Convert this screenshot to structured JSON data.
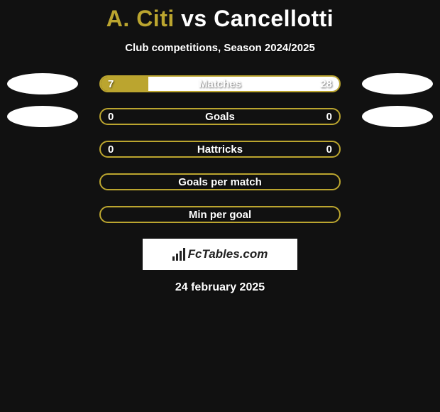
{
  "title": {
    "player1": "A. Citi",
    "vs": "vs",
    "player2": "Cancellotti",
    "player1_color": "#bba52f",
    "player2_color": "#ffffff",
    "vs_color": "#ffffff",
    "fontsize": 32
  },
  "subtitle": "Club competitions, Season 2024/2025",
  "date": "24 february 2025",
  "background_color": "#111111",
  "bar_border_color": "#bba52f",
  "bar_left_fill": "#bba52f",
  "bar_right_fill": "#ffffff",
  "text_color": "#ffffff",
  "logo_text": "FcTables.com",
  "rows": [
    {
      "label": "Matches",
      "left_value": "7",
      "right_value": "28",
      "left_pct": 20,
      "right_pct": 80,
      "badge_left": true,
      "badge_right": true,
      "badge_left_color": "#ffffff",
      "badge_right_color": "#ffffff"
    },
    {
      "label": "Goals",
      "left_value": "0",
      "right_value": "0",
      "left_pct": 0,
      "right_pct": 0,
      "badge_left": true,
      "badge_right": true,
      "badge_left_color": "#ffffff",
      "badge_right_color": "#ffffff"
    },
    {
      "label": "Hattricks",
      "left_value": "0",
      "right_value": "0",
      "left_pct": 0,
      "right_pct": 0,
      "badge_left": false,
      "badge_right": false
    },
    {
      "label": "Goals per match",
      "left_value": "",
      "right_value": "",
      "left_pct": 0,
      "right_pct": 0,
      "badge_left": false,
      "badge_right": false
    },
    {
      "label": "Min per goal",
      "left_value": "",
      "right_value": "",
      "left_pct": 0,
      "right_pct": 0,
      "badge_left": false,
      "badge_right": false
    }
  ]
}
